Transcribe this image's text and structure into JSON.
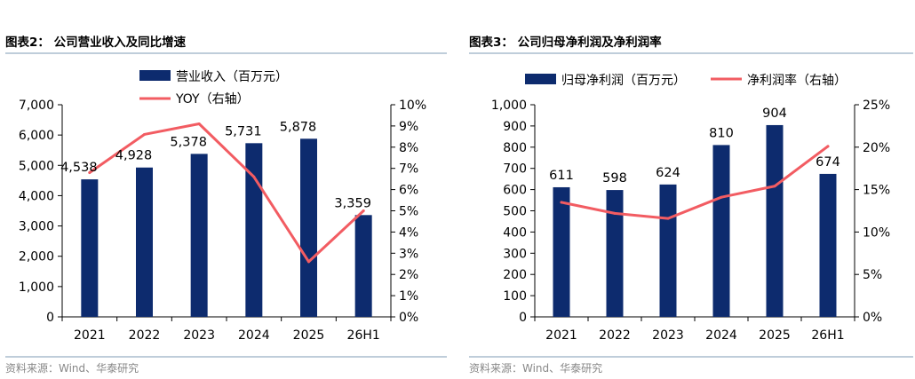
{
  "colors": {
    "bar": "#0d2b6e",
    "line": "#f25c62",
    "divider": "#7f9bb5",
    "source": "#888888"
  },
  "chart_data": [
    {
      "type": "bar",
      "title": "图表2：  公司营业收入及同比增速",
      "source": "资料来源：Wind、华泰研究",
      "categories": [
        "2021",
        "2022",
        "2023",
        "2024",
        "2025",
        "26H1"
      ],
      "ylim": [
        0,
        7000
      ],
      "ylim_right": [
        0,
        0.1
      ],
      "legend_position": "top-left",
      "grid": false,
      "yticks_left": [
        "0",
        "1,000",
        "2,000",
        "3,000",
        "4,000",
        "5,000",
        "6,000",
        "7,000"
      ],
      "yticks_right": [
        "0%",
        "1%",
        "2%",
        "3%",
        "4%",
        "5%",
        "6%",
        "7%",
        "8%",
        "9%",
        "10%"
      ],
      "series": [
        {
          "name": "营业收入（百万元）",
          "kind": "bar",
          "axis": "left",
          "values": [
            4538,
            4928,
            5378,
            5731,
            5878,
            3359
          ],
          "labels": [
            "4,538",
            "4,928",
            "5,378",
            "5,731",
            "5,878",
            "3,359"
          ]
        },
        {
          "name": "YOY（右轴）",
          "kind": "line",
          "axis": "right",
          "values": [
            0.068,
            0.086,
            0.091,
            0.066,
            0.026,
            0.05
          ]
        }
      ]
    },
    {
      "type": "bar",
      "title": "图表3：  公司归母净利润及净利润率",
      "source": "资料来源：Wind、华泰研究",
      "categories": [
        "2021",
        "2022",
        "2023",
        "2024",
        "2025",
        "26H1"
      ],
      "ylim": [
        0,
        1000
      ],
      "ylim_right": [
        0,
        0.25
      ],
      "legend_position": "top",
      "grid": false,
      "yticks_left": [
        "0",
        "100",
        "200",
        "300",
        "400",
        "500",
        "600",
        "700",
        "800",
        "900",
        "1,000"
      ],
      "yticks_right": [
        "0%",
        "5%",
        "10%",
        "15%",
        "20%",
        "25%"
      ],
      "series": [
        {
          "name": "归母净利润（百万元）",
          "kind": "bar",
          "axis": "left",
          "values": [
            611,
            598,
            624,
            810,
            904,
            674
          ],
          "labels": [
            "611",
            "598",
            "624",
            "810",
            "904",
            "674"
          ]
        },
        {
          "name": "净利润率（右轴）",
          "kind": "line",
          "axis": "right",
          "values": [
            0.135,
            0.122,
            0.116,
            0.141,
            0.154,
            0.201
          ]
        }
      ]
    }
  ]
}
